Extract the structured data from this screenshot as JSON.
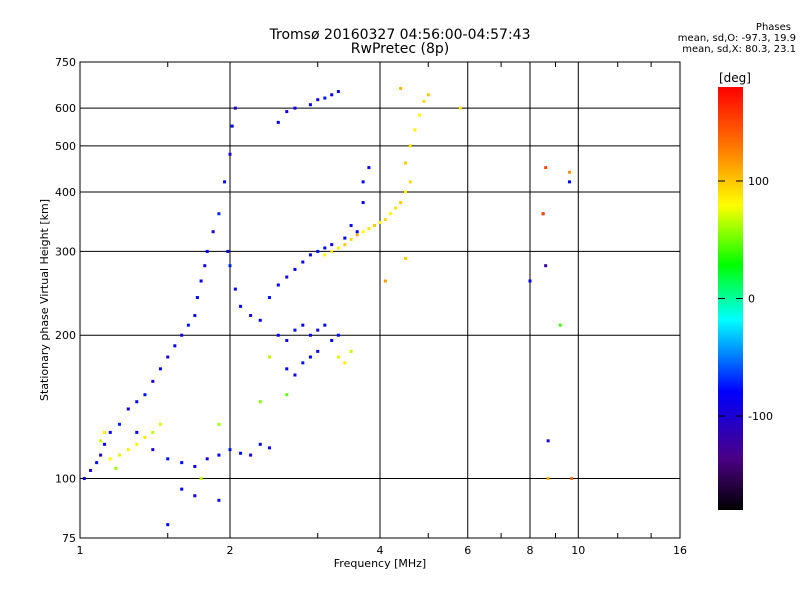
{
  "header": {
    "title": "Tromsø 20160327 04:56:00-04:57:43",
    "subtitle": "RwPretec (8p)"
  },
  "phases": {
    "title": "Phases",
    "line_o": "mean, sd,O: -97.3, 19.9",
    "line_x": "mean, sd,X: 80.3, 23.1"
  },
  "chart_data": {
    "type": "scatter",
    "title": "Tromsø 20160327 04:56:00-04:57:43",
    "subtitle": "RwPretec (8p)",
    "xlabel": "Frequency [MHz]",
    "ylabel": "Stationary phase Virtual Height [km]",
    "x_scale": "log",
    "y_scale": "log",
    "xlim": [
      1,
      16
    ],
    "ylim": [
      75,
      750
    ],
    "x_ticks": [
      1,
      2,
      4,
      6,
      8,
      10,
      16
    ],
    "x_tick_labels": [
      "1",
      "2",
      "4",
      "6",
      "8",
      "10",
      "16"
    ],
    "y_ticks": [
      75,
      100,
      200,
      300,
      400,
      500,
      600,
      750
    ],
    "y_tick_labels": [
      "75",
      "100",
      "200",
      "300",
      "400",
      "500",
      "600",
      "750"
    ],
    "grid": true,
    "colorbar": {
      "label": "[deg]",
      "range": [
        -180,
        180
      ],
      "ticks": [
        100,
        0,
        -100
      ],
      "tick_labels": [
        "100",
        "0",
        "-100"
      ],
      "colors": [
        "#000000",
        "#4b0082",
        "#0000ff",
        "#00ffff",
        "#00ff00",
        "#ffff00",
        "#ff7f00",
        "#ff0000"
      ]
    },
    "series": [
      {
        "name": "O",
        "points": [
          [
            1.02,
            100,
            -100
          ],
          [
            1.05,
            104,
            -110
          ],
          [
            1.08,
            108,
            -95
          ],
          [
            1.1,
            112,
            -120
          ],
          [
            1.12,
            118,
            -100
          ],
          [
            1.15,
            125,
            -105
          ],
          [
            1.2,
            130,
            -90
          ],
          [
            1.25,
            140,
            -110
          ],
          [
            1.3,
            145,
            -100
          ],
          [
            1.35,
            150,
            -95
          ],
          [
            1.4,
            160,
            -110
          ],
          [
            1.45,
            170,
            -100
          ],
          [
            1.5,
            180,
            -120
          ],
          [
            1.55,
            190,
            -100
          ],
          [
            1.6,
            200,
            -110
          ],
          [
            1.65,
            210,
            -95
          ],
          [
            1.7,
            220,
            -110
          ],
          [
            1.72,
            240,
            -100
          ],
          [
            1.75,
            260,
            -105
          ],
          [
            1.78,
            280,
            -110
          ],
          [
            1.8,
            300,
            -100
          ],
          [
            1.85,
            330,
            -120
          ],
          [
            1.9,
            360,
            -90
          ],
          [
            1.95,
            420,
            -100
          ],
          [
            2.0,
            480,
            -110
          ],
          [
            2.02,
            550,
            -100
          ],
          [
            2.05,
            600,
            -115
          ],
          [
            1.98,
            300,
            -100
          ],
          [
            2.0,
            280,
            -90
          ],
          [
            2.05,
            250,
            -105
          ],
          [
            2.1,
            230,
            -100
          ],
          [
            2.2,
            220,
            -110
          ],
          [
            2.3,
            215,
            -100
          ],
          [
            2.4,
            240,
            -95
          ],
          [
            2.5,
            255,
            -100
          ],
          [
            2.6,
            265,
            -110
          ],
          [
            2.7,
            275,
            -100
          ],
          [
            2.8,
            285,
            -105
          ],
          [
            2.9,
            295,
            -100
          ],
          [
            3.0,
            300,
            -95
          ],
          [
            3.1,
            305,
            -100
          ],
          [
            3.2,
            310,
            -110
          ],
          [
            3.4,
            320,
            -100
          ],
          [
            3.6,
            330,
            -105
          ],
          [
            2.5,
            200,
            -100
          ],
          [
            2.6,
            195,
            -110
          ],
          [
            2.7,
            205,
            -95
          ],
          [
            2.8,
            210,
            -100
          ],
          [
            2.9,
            200,
            -105
          ],
          [
            3.0,
            205,
            -110
          ],
          [
            3.1,
            210,
            -100
          ],
          [
            2.6,
            170,
            -100
          ],
          [
            2.7,
            165,
            -110
          ],
          [
            2.8,
            175,
            -95
          ],
          [
            2.9,
            180,
            -100
          ],
          [
            3.0,
            185,
            -105
          ],
          [
            2.9,
            610,
            -100
          ],
          [
            3.0,
            625,
            -110
          ],
          [
            3.1,
            630,
            -95
          ],
          [
            3.2,
            640,
            -100
          ],
          [
            3.3,
            650,
            -105
          ],
          [
            2.6,
            590,
            -100
          ],
          [
            2.7,
            600,
            -110
          ],
          [
            2.5,
            560,
            -100
          ],
          [
            1.3,
            125,
            -100
          ],
          [
            1.4,
            115,
            -110
          ],
          [
            1.5,
            110,
            -95
          ],
          [
            1.6,
            108,
            -100
          ],
          [
            1.7,
            106,
            -105
          ],
          [
            1.8,
            110,
            -110
          ],
          [
            1.9,
            112,
            -100
          ],
          [
            2.0,
            115,
            -95
          ],
          [
            2.1,
            113,
            -100
          ],
          [
            2.2,
            112,
            -110
          ],
          [
            2.3,
            118,
            -100
          ],
          [
            2.4,
            116,
            -105
          ],
          [
            1.6,
            95,
            -100
          ],
          [
            1.7,
            92,
            -110
          ],
          [
            1.5,
            80,
            -100
          ],
          [
            1.9,
            90,
            -105
          ],
          [
            3.2,
            195,
            -100
          ],
          [
            3.3,
            200,
            -95
          ],
          [
            3.5,
            340,
            -105
          ],
          [
            3.7,
            420,
            -100
          ],
          [
            3.8,
            450,
            -110
          ],
          [
            3.7,
            380,
            -100
          ],
          [
            8.0,
            260,
            -100
          ],
          [
            8.5,
            360,
            -120
          ],
          [
            8.6,
            280,
            -130
          ],
          [
            8.7,
            120,
            -110
          ],
          [
            9.6,
            420,
            -100
          ]
        ]
      },
      {
        "name": "X",
        "points": [
          [
            1.15,
            110,
            80
          ],
          [
            1.2,
            112,
            70
          ],
          [
            1.25,
            115,
            85
          ],
          [
            1.3,
            118,
            75
          ],
          [
            1.35,
            122,
            90
          ],
          [
            1.4,
            125,
            60
          ],
          [
            1.45,
            130,
            70
          ],
          [
            1.1,
            120,
            65
          ],
          [
            1.12,
            125,
            85
          ],
          [
            1.18,
            105,
            50
          ],
          [
            3.1,
            295,
            80
          ],
          [
            3.2,
            300,
            90
          ],
          [
            3.3,
            305,
            85
          ],
          [
            3.4,
            310,
            100
          ],
          [
            3.5,
            318,
            95
          ],
          [
            3.6,
            325,
            110
          ],
          [
            3.7,
            330,
            80
          ],
          [
            3.8,
            335,
            90
          ],
          [
            3.9,
            340,
            100
          ],
          [
            4.0,
            345,
            85
          ],
          [
            4.1,
            350,
            95
          ],
          [
            4.2,
            360,
            80
          ],
          [
            4.3,
            370,
            90
          ],
          [
            4.4,
            380,
            100
          ],
          [
            4.5,
            400,
            85
          ],
          [
            4.6,
            420,
            95
          ],
          [
            4.5,
            460,
            100
          ],
          [
            4.6,
            500,
            90
          ],
          [
            4.7,
            540,
            85
          ],
          [
            4.8,
            580,
            80
          ],
          [
            4.9,
            620,
            95
          ],
          [
            5.0,
            640,
            100
          ],
          [
            4.4,
            660,
            110
          ],
          [
            3.3,
            180,
            70
          ],
          [
            3.4,
            175,
            85
          ],
          [
            3.5,
            185,
            60
          ],
          [
            4.1,
            260,
            120
          ],
          [
            4.5,
            290,
            100
          ],
          [
            8.6,
            450,
            150
          ],
          [
            9.6,
            440,
            120
          ],
          [
            8.7,
            100,
            110
          ],
          [
            9.7,
            100,
            140
          ],
          [
            8.5,
            360,
            150
          ],
          [
            9.2,
            210,
            20
          ],
          [
            5.8,
            600,
            90
          ],
          [
            1.75,
            100,
            60
          ],
          [
            1.9,
            130,
            50
          ],
          [
            2.3,
            145,
            40
          ],
          [
            2.6,
            150,
            30
          ],
          [
            2.4,
            180,
            60
          ]
        ]
      }
    ]
  }
}
